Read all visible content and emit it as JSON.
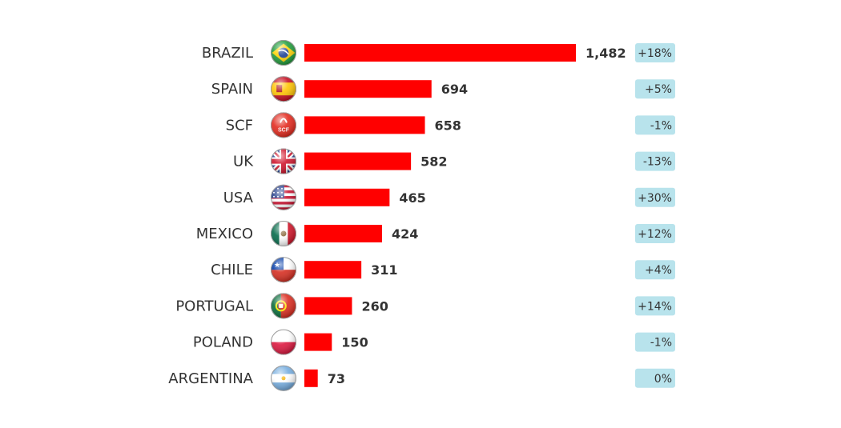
{
  "chart_data": {
    "type": "bar",
    "orientation": "horizontal",
    "categories": [
      "BRAZIL",
      "SPAIN",
      "SCF",
      "UK",
      "USA",
      "MEXICO",
      "CHILE",
      "PORTUGAL",
      "POLAND",
      "ARGENTINA"
    ],
    "values": [
      1482,
      694,
      658,
      582,
      465,
      424,
      311,
      260,
      150,
      73
    ],
    "value_labels": [
      "1,482",
      "694",
      "658",
      "582",
      "465",
      "424",
      "311",
      "260",
      "150",
      "73"
    ],
    "changes": [
      "+18%",
      "+5%",
      "-1%",
      "-13%",
      "+30%",
      "+12%",
      "+4%",
      "+14%",
      "-1%",
      "0%"
    ],
    "flags": [
      "brazil-flag-icon",
      "spain-flag-icon",
      "scf-logo-icon",
      "uk-flag-icon",
      "usa-flag-icon",
      "mexico-flag-icon",
      "chile-flag-icon",
      "portugal-flag-icon",
      "poland-flag-icon",
      "argentina-flag-icon"
    ],
    "scf_logo_text": "SCF",
    "xlim": [
      0,
      1482
    ],
    "grid": false,
    "colors": {
      "bar": "#ff0000",
      "badge": "#b8e3ec",
      "text": "#333333"
    }
  }
}
